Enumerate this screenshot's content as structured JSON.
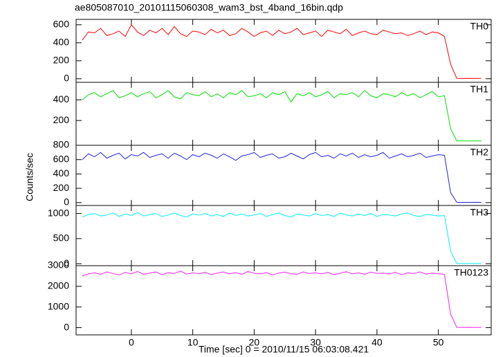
{
  "chart_data": {
    "type": "line",
    "title": "ae805087010_20101115060308_wam3_bst_4band_16bin.qdp",
    "xlabel": "Time [sec] 0 = 2010/11/15 06:03:08.421",
    "ylabel": "Counts/sec",
    "xlim": [
      -9,
      58.6
    ],
    "xticks": [
      0,
      10,
      20,
      30,
      40,
      50
    ],
    "x": [
      -8,
      -7,
      -6,
      -5,
      -4,
      -3,
      -2,
      -1,
      0,
      1,
      2,
      3,
      4,
      5,
      6,
      7,
      8,
      9,
      10,
      11,
      12,
      13,
      14,
      15,
      16,
      17,
      18,
      19,
      20,
      21,
      22,
      23,
      24,
      25,
      26,
      27,
      28,
      29,
      30,
      31,
      32,
      33,
      34,
      35,
      36,
      37,
      38,
      39,
      40,
      41,
      42,
      43,
      44,
      45,
      46,
      47,
      48,
      49,
      50,
      51,
      52,
      53,
      54,
      55,
      56,
      57
    ],
    "panels": [
      {
        "name": "TH0",
        "color": "#ff0000",
        "ylim": [
          -40,
          660
        ],
        "yticks": [
          0,
          200,
          400,
          600
        ],
        "values": [
          430,
          520,
          510,
          560,
          480,
          500,
          530,
          470,
          600,
          520,
          480,
          540,
          510,
          560,
          490,
          580,
          500,
          470,
          530,
          520,
          490,
          550,
          510,
          540,
          480,
          500,
          560,
          520,
          470,
          510,
          530,
          480,
          540,
          500,
          520,
          560,
          490,
          510,
          530,
          470,
          540,
          520,
          500,
          550,
          480,
          510,
          530,
          500,
          490,
          540,
          520,
          500,
          510,
          480,
          500,
          530,
          490,
          520,
          510,
          470,
          160,
          4,
          3,
          4,
          3,
          5
        ]
      },
      {
        "name": "TH1",
        "color": "#00e000",
        "ylim": [
          -40,
          570
        ],
        "yticks": [
          200,
          400
        ],
        "values": [
          400,
          450,
          470,
          430,
          460,
          490,
          420,
          440,
          470,
          430,
          460,
          480,
          420,
          450,
          490,
          430,
          410,
          470,
          450,
          440,
          480,
          430,
          460,
          420,
          470,
          450,
          490,
          430,
          440,
          460,
          420,
          470,
          450,
          480,
          380,
          460,
          440,
          470,
          430,
          450,
          480,
          420,
          460,
          450,
          470,
          430,
          490,
          440,
          420,
          460,
          450,
          430,
          470,
          440,
          460,
          420,
          450,
          480,
          430,
          440,
          120,
          3,
          3,
          2,
          3,
          3
        ]
      },
      {
        "name": "TH2",
        "color": "#2020e0",
        "ylim": [
          -40,
          800
        ],
        "yticks": [
          0,
          200,
          400,
          600,
          800
        ],
        "values": [
          600,
          680,
          640,
          700,
          620,
          660,
          690,
          610,
          670,
          650,
          700,
          630,
          660,
          680,
          620,
          690,
          650,
          600,
          670,
          640,
          690,
          660,
          620,
          680,
          640,
          590,
          650,
          670,
          700,
          630,
          660,
          680,
          620,
          640,
          690,
          650,
          610,
          670,
          700,
          640,
          660,
          620,
          680,
          650,
          690,
          630,
          670,
          640,
          660,
          700,
          620,
          650,
          680,
          640,
          660,
          690,
          630,
          650,
          670,
          660,
          140,
          4,
          3,
          3,
          4,
          3
        ]
      },
      {
        "name": "TH3",
        "color": "#00f0f0",
        "ylim": [
          -40,
          1160
        ],
        "yticks": [
          0,
          500,
          1000
        ],
        "values": [
          930,
          980,
          1000,
          950,
          970,
          1010,
          940,
          990,
          960,
          1020,
          950,
          980,
          1000,
          940,
          970,
          1010,
          960,
          930,
          990,
          970,
          1000,
          950,
          980,
          940,
          1010,
          960,
          990,
          950,
          970,
          1000,
          940,
          980,
          1010,
          960,
          930,
          990,
          970,
          950,
          1000,
          960,
          980,
          940,
          1010,
          970,
          950,
          990,
          960,
          1000,
          940,
          980,
          970,
          950,
          990,
          1010,
          960,
          940,
          980,
          970,
          950,
          960,
          250,
          5,
          4,
          5,
          4,
          5
        ]
      },
      {
        "name": "TH0123",
        "color": "#f020f0",
        "ylim": [
          -350,
          3000
        ],
        "yticks": [
          0,
          1000,
          2000,
          3000
        ],
        "values": [
          2500,
          2600,
          2650,
          2580,
          2700,
          2620,
          2550,
          2680,
          2600,
          2720,
          2580,
          2640,
          2700,
          2560,
          2660,
          2620,
          2740,
          2590,
          2650,
          2610,
          2680,
          2570,
          2640,
          2700,
          2600,
          2660,
          2580,
          2720,
          2630,
          2600,
          2670,
          2550,
          2640,
          2690,
          2610,
          2580,
          2700,
          2620,
          2650,
          2600,
          2680,
          2570,
          2630,
          2710,
          2600,
          2650,
          2580,
          2690,
          2620,
          2640,
          2600,
          2680,
          2560,
          2650,
          2620,
          2700,
          2590,
          2640,
          2610,
          2580,
          650,
          15,
          12,
          14,
          13,
          15
        ]
      }
    ]
  }
}
